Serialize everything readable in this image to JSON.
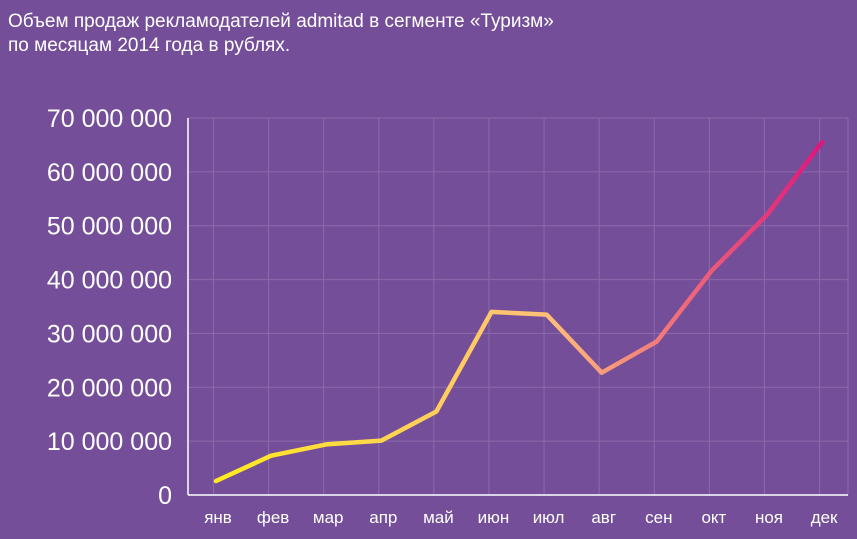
{
  "title_line1": "Объем продаж рекламодателей admitad в сегменте «Туризм»",
  "title_line2": "по месяцам 2014 года в рублях.",
  "colors": {
    "background": "#744e98",
    "grid": "#8b6aab",
    "axis": "#ffffff",
    "line_start": "#ffec1f",
    "line_mid": "#ffbf7a",
    "line_end": "#e0157a"
  },
  "chart_data": {
    "type": "line",
    "title": "Объем продаж рекламодателей admitad в сегменте «Туризм» по месяцам 2014 года в рублях.",
    "categories": [
      "янв",
      "фев",
      "мар",
      "апр",
      "май",
      "июн",
      "июл",
      "авг",
      "сен",
      "окт",
      "ноя",
      "дек"
    ],
    "values": [
      2600000,
      7300000,
      9400000,
      10100000,
      15500000,
      34000000,
      33500000,
      22700000,
      28500000,
      41700000,
      52000000,
      65500000
    ],
    "ylim": [
      0,
      70000000
    ],
    "yticks": [
      0,
      10000000,
      20000000,
      30000000,
      40000000,
      50000000,
      60000000,
      70000000
    ],
    "ytick_labels": [
      "0",
      "10 000 000",
      "20 000 000",
      "30 000 000",
      "40 000 000",
      "50 000 000",
      "60 000 000",
      "70 000 000"
    ],
    "grid": true,
    "xlabel": "",
    "ylabel": ""
  }
}
